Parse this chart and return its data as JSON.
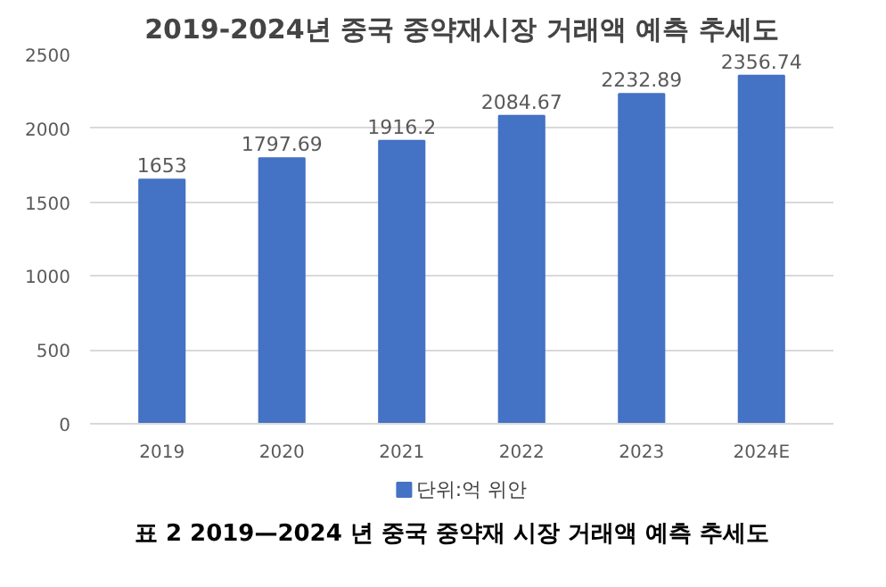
{
  "chart_data": {
    "type": "bar",
    "title": "2019-2024년 중국 중약재시장 거래액 예측 추세도",
    "categories": [
      "2019",
      "2020",
      "2021",
      "2022",
      "2023",
      "2024E"
    ],
    "series": [
      {
        "name": "단위:억 위안",
        "color": "#4472c4",
        "values": [
          1653,
          1797.69,
          1916.2,
          2084.67,
          2232.89,
          2356.74
        ]
      }
    ],
    "ylim": [
      0,
      2500
    ],
    "yticks": [
      0,
      500,
      1000,
      1500,
      2000,
      2500
    ],
    "grid": "y",
    "legend": "bottom",
    "data_labels": true,
    "annotations": [
      "표 2 2019—2024 년 중국 중약재 시장 거래액 예측 추세도"
    ]
  }
}
